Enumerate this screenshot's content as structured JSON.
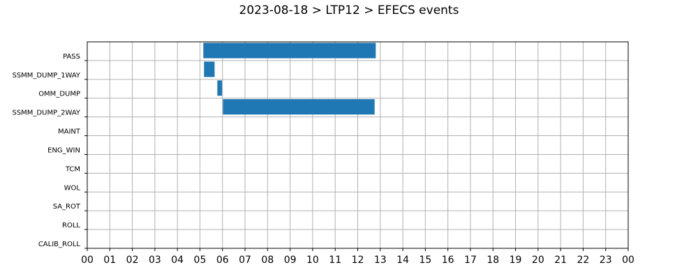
{
  "chart_data": {
    "type": "bar",
    "orientation": "horizontal-gantt",
    "title": "2023-08-18 > LTP12 > EFECS events",
    "xlabel": "",
    "ylabel": "",
    "x_unit": "hour",
    "xlim": [
      0,
      24
    ],
    "x_ticks": [
      "00",
      "01",
      "02",
      "03",
      "04",
      "05",
      "06",
      "07",
      "08",
      "09",
      "10",
      "11",
      "12",
      "13",
      "14",
      "15",
      "16",
      "17",
      "18",
      "19",
      "20",
      "21",
      "22",
      "23",
      "00"
    ],
    "categories": [
      "PASS",
      "SSMM_DUMP_1WAY",
      "OMM_DUMP",
      "SSMM_DUMP_2WAY",
      "MAINT",
      "ENG_WIN",
      "TCM",
      "WOL",
      "SA_ROT",
      "ROLL",
      "CALIB_ROLL"
    ],
    "events": [
      {
        "category": "PASS",
        "start": 5.15,
        "end": 12.8
      },
      {
        "category": "SSMM_DUMP_1WAY",
        "start": 5.18,
        "end": 5.65
      },
      {
        "category": "OMM_DUMP",
        "start": 5.77,
        "end": 5.98
      },
      {
        "category": "SSMM_DUMP_2WAY",
        "start": 6.02,
        "end": 12.75
      }
    ],
    "grid": true,
    "bar_color": "#1f77b4"
  }
}
